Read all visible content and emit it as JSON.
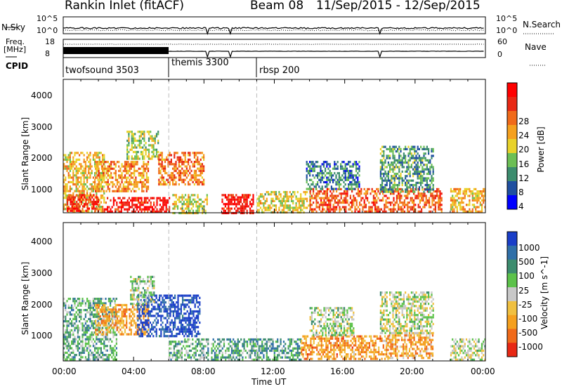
{
  "header": {
    "title": "Rankin Inlet (fitACF)",
    "beam": "Beam 08",
    "date_range": "11/Sep/2015 - 12/Sep/2015"
  },
  "noise_panel": {
    "left_label": "N.Sky",
    "left_top": "10^5",
    "left_bottom": "10^0",
    "right_label": "N.Search",
    "right_top": "10^5",
    "right_bottom": "10^0"
  },
  "freq_panel": {
    "left_label_1": "Freq.",
    "left_label_2": "[MHz]",
    "left_top": "18",
    "left_bottom": "8",
    "right_label": "Nave",
    "right_top": "60",
    "right_bottom": "0"
  },
  "cpid_panel": {
    "label": "CPID",
    "modes": [
      {
        "name": "twofsound 3503",
        "start": 0.0
      },
      {
        "name": "themis 3300",
        "start": 6.0
      },
      {
        "name": "rbsp 200",
        "start": 11.0
      }
    ]
  },
  "chart_data": [
    {
      "type": "heatmap",
      "panel": "power",
      "xlabel": "",
      "ylabel": "Slant Range [km]",
      "yticks": [
        "1000",
        "2000",
        "3000",
        "4000"
      ],
      "ylim": [
        180,
        4600
      ],
      "xlim_hours": [
        0,
        24
      ],
      "colorbar_label": "Power [dB]",
      "colorbar_ticks": [
        "4",
        "8",
        "12",
        "16",
        "20",
        "24",
        "28"
      ],
      "colorbar_colors": [
        "#0000ff",
        "#1f4fa0",
        "#3c8c6e",
        "#6cbf55",
        "#e8d22a",
        "#f5a01e",
        "#f06a1a",
        "#e82814",
        "#ff0000"
      ],
      "regions": [
        {
          "t0": 0.0,
          "t1": 2.3,
          "r0": 200,
          "r1": 2200,
          "level": 0.55
        },
        {
          "t0": 0.2,
          "t1": 2.0,
          "r0": 250,
          "r1": 800,
          "level": 0.85
        },
        {
          "t0": 2.3,
          "t1": 6.0,
          "r0": 200,
          "r1": 700,
          "level": 0.9
        },
        {
          "t0": 1.8,
          "t1": 4.8,
          "r0": 900,
          "r1": 1900,
          "level": 0.65
        },
        {
          "t0": 3.6,
          "t1": 5.4,
          "r0": 2000,
          "r1": 2900,
          "level": 0.45
        },
        {
          "t0": 5.4,
          "t1": 8.0,
          "r0": 1100,
          "r1": 2200,
          "level": 0.7
        },
        {
          "t0": 6.2,
          "t1": 8.2,
          "r0": 200,
          "r1": 800,
          "level": 0.5
        },
        {
          "t0": 9.0,
          "t1": 10.8,
          "r0": 200,
          "r1": 800,
          "level": 0.9
        },
        {
          "t0": 11.0,
          "t1": 14.0,
          "r0": 200,
          "r1": 900,
          "level": 0.5
        },
        {
          "t0": 14.0,
          "t1": 21.5,
          "r0": 250,
          "r1": 1000,
          "level": 0.75
        },
        {
          "t0": 13.8,
          "t1": 16.8,
          "r0": 1000,
          "r1": 1900,
          "level": 0.25
        },
        {
          "t0": 18.0,
          "t1": 21.0,
          "r0": 900,
          "r1": 2400,
          "level": 0.3
        },
        {
          "t0": 22.0,
          "t1": 24.0,
          "r0": 200,
          "r1": 1000,
          "level": 0.6
        }
      ]
    },
    {
      "type": "heatmap",
      "panel": "velocity",
      "xlabel": "Time UT",
      "ylabel": "Slant Range [km]",
      "yticks": [
        "1000",
        "2000",
        "3000",
        "4000"
      ],
      "ylim": [
        180,
        4600
      ],
      "xticks": [
        "00:00",
        "04:00",
        "08:00",
        "12:00",
        "16:00",
        "20:00",
        "00:00"
      ],
      "xlim_hours": [
        0,
        24
      ],
      "colorbar_label": "Velocity [m s^-1]",
      "colorbar_ticks": [
        "1000",
        "500",
        "100",
        "25",
        "-25",
        "-100",
        "-500",
        "-1000"
      ],
      "colorbar_colors": [
        "#1a3ec8",
        "#2f6fa8",
        "#3c8c6e",
        "#5cc24a",
        "#c8c8c8",
        "#f0c040",
        "#f5a01e",
        "#f06a1a",
        "#e82814"
      ],
      "regions": [
        {
          "t0": 0.0,
          "t1": 3.0,
          "r0": 200,
          "r1": 2200,
          "level": 0.35
        },
        {
          "t0": 1.8,
          "t1": 4.8,
          "r0": 1000,
          "r1": 2000,
          "level": 0.72
        },
        {
          "t0": 4.2,
          "t1": 7.8,
          "r0": 1000,
          "r1": 2300,
          "level": 0.05
        },
        {
          "t0": 3.8,
          "t1": 5.2,
          "r0": 2000,
          "r1": 2900,
          "level": 0.45
        },
        {
          "t0": 6.0,
          "t1": 8.2,
          "r0": 200,
          "r1": 900,
          "level": 0.35
        },
        {
          "t0": 8.4,
          "t1": 11.0,
          "r0": 200,
          "r1": 900,
          "level": 0.32
        },
        {
          "t0": 11.0,
          "t1": 13.5,
          "r0": 200,
          "r1": 900,
          "level": 0.3
        },
        {
          "t0": 13.5,
          "t1": 18.5,
          "r0": 250,
          "r1": 1000,
          "level": 0.72
        },
        {
          "t0": 18.5,
          "t1": 21.0,
          "r0": 250,
          "r1": 1100,
          "level": 0.7
        },
        {
          "t0": 18.0,
          "t1": 21.0,
          "r0": 1100,
          "r1": 2400,
          "level": 0.48
        },
        {
          "t0": 14.0,
          "t1": 16.5,
          "r0": 1000,
          "r1": 1900,
          "level": 0.45
        },
        {
          "t0": 22.0,
          "t1": 24.0,
          "r0": 200,
          "r1": 900,
          "level": 0.48
        }
      ]
    }
  ]
}
